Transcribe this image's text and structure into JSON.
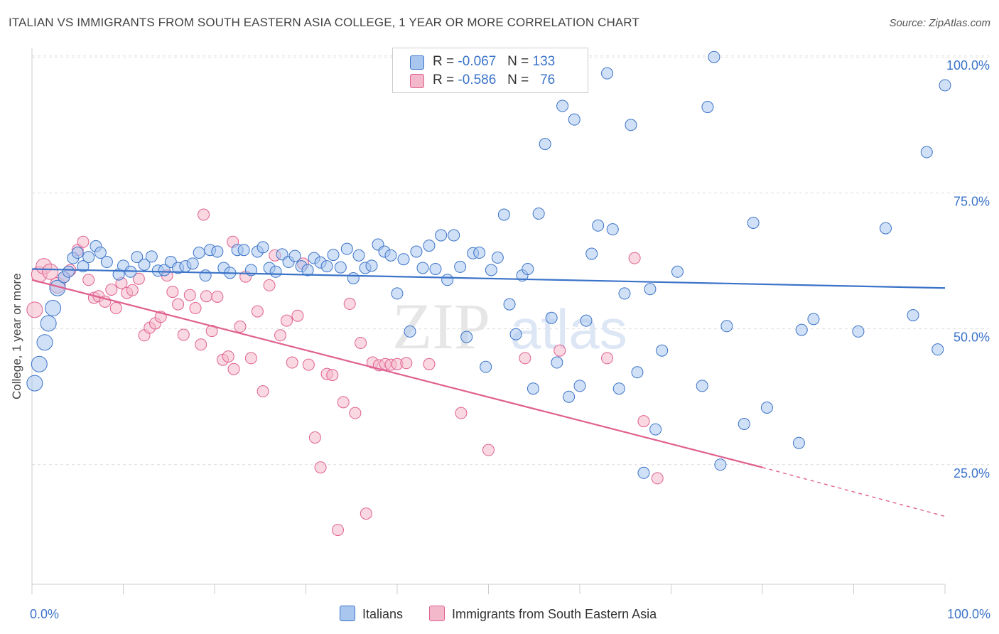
{
  "title": "ITALIAN VS IMMIGRANTS FROM SOUTH EASTERN ASIA COLLEGE, 1 YEAR OR MORE CORRELATION CHART",
  "source": "Source: ZipAtlas.com",
  "watermark": {
    "zip": "ZIP",
    "atlas": "atlas"
  },
  "colors": {
    "blue": "#3b73c8",
    "blue_fill": "#a9c6ee",
    "pink": "#e0608f",
    "pink_fill": "#f4b8cb",
    "axis_text": "#3b73c8"
  },
  "legend": {
    "rows": [
      {
        "r_label": "R =",
        "r_value": "-0.067",
        "n_label": "N =",
        "n_value": "133"
      },
      {
        "r_label": "R =",
        "r_value": "-0.586",
        "n_label": "N =",
        "n_value": "76"
      }
    ]
  },
  "bottom_legend": {
    "items": [
      "Italians",
      "Immigrants from South Eastern Asia"
    ]
  },
  "chart_data": {
    "type": "scatter",
    "title": "ITALIAN VS IMMIGRANTS FROM SOUTH EASTERN ASIA COLLEGE, 1 YEAR OR MORE CORRELATION CHART",
    "xlabel": "",
    "ylabel": "College, 1 year or more",
    "x_tick_labels": [
      "0.0%",
      "100.0%"
    ],
    "y_tick_labels": [
      "25.0%",
      "50.0%",
      "75.0%",
      "100.0%"
    ],
    "xlim": [
      0,
      100
    ],
    "ylim": [
      0,
      105
    ],
    "grid": "horizontal dashed",
    "series": [
      {
        "name": "Italians",
        "color": "#3b73c8",
        "trend": {
          "x": [
            0,
            100
          ],
          "y": [
            61.0,
            57.5
          ]
        },
        "points": [
          [
            0.3,
            40.0
          ],
          [
            0.8,
            43.5
          ],
          [
            1.4,
            47.5
          ],
          [
            1.8,
            51.0
          ],
          [
            2.3,
            53.8
          ],
          [
            2.8,
            57.5
          ],
          [
            3.5,
            59.5
          ],
          [
            4.0,
            60.5
          ],
          [
            4.5,
            63.0
          ],
          [
            5.0,
            64.0
          ],
          [
            5.6,
            61.5
          ],
          [
            6.2,
            63.2
          ],
          [
            7.0,
            65.2
          ],
          [
            7.5,
            64.0
          ],
          [
            8.2,
            62.3
          ],
          [
            9.5,
            60.0
          ],
          [
            10.0,
            61.6
          ],
          [
            10.8,
            60.5
          ],
          [
            11.5,
            63.2
          ],
          [
            12.3,
            61.8
          ],
          [
            13.1,
            63.3
          ],
          [
            13.8,
            60.7
          ],
          [
            14.5,
            60.8
          ],
          [
            15.2,
            62.3
          ],
          [
            16.0,
            61.2
          ],
          [
            16.8,
            61.5
          ],
          [
            17.6,
            62.0
          ],
          [
            18.3,
            64.0
          ],
          [
            19.0,
            59.8
          ],
          [
            19.5,
            64.5
          ],
          [
            20.3,
            64.2
          ],
          [
            21.0,
            61.2
          ],
          [
            21.7,
            60.3
          ],
          [
            22.5,
            64.5
          ],
          [
            23.2,
            64.5
          ],
          [
            24.0,
            60.8
          ],
          [
            24.7,
            64.2
          ],
          [
            25.3,
            65.0
          ],
          [
            26.0,
            61.2
          ],
          [
            26.7,
            60.5
          ],
          [
            27.4,
            63.7
          ],
          [
            28.1,
            62.3
          ],
          [
            28.8,
            63.4
          ],
          [
            29.5,
            61.5
          ],
          [
            30.2,
            60.8
          ],
          [
            30.9,
            63.0
          ],
          [
            31.6,
            62.2
          ],
          [
            32.3,
            61.5
          ],
          [
            33.0,
            63.6
          ],
          [
            33.8,
            61.3
          ],
          [
            34.5,
            64.7
          ],
          [
            35.2,
            59.3
          ],
          [
            35.8,
            63.5
          ],
          [
            36.5,
            61.2
          ],
          [
            37.2,
            61.6
          ],
          [
            37.9,
            65.5
          ],
          [
            38.6,
            64.2
          ],
          [
            39.3,
            63.5
          ],
          [
            40.0,
            56.5
          ],
          [
            40.7,
            62.8
          ],
          [
            41.4,
            49.5
          ],
          [
            42.1,
            64.2
          ],
          [
            42.8,
            61.2
          ],
          [
            43.5,
            65.3
          ],
          [
            44.2,
            61.0
          ],
          [
            44.8,
            67.2
          ],
          [
            45.5,
            59.0
          ],
          [
            46.2,
            67.2
          ],
          [
            46.9,
            61.4
          ],
          [
            47.6,
            48.5
          ],
          [
            48.3,
            63.9
          ],
          [
            49.0,
            64.0
          ],
          [
            49.7,
            43.0
          ],
          [
            50.3,
            60.8
          ],
          [
            51.0,
            63.1
          ],
          [
            51.7,
            71.0
          ],
          [
            52.3,
            54.5
          ],
          [
            53.0,
            49.0
          ],
          [
            53.7,
            59.8
          ],
          [
            54.3,
            61.0
          ],
          [
            54.9,
            39.0
          ],
          [
            55.5,
            71.2
          ],
          [
            56.2,
            84.0
          ],
          [
            56.9,
            52.0
          ],
          [
            57.5,
            43.8
          ],
          [
            58.1,
            91.0
          ],
          [
            58.8,
            37.5
          ],
          [
            59.4,
            88.5
          ],
          [
            60.0,
            39.5
          ],
          [
            60.7,
            51.5
          ],
          [
            61.3,
            63.8
          ],
          [
            62.0,
            69.0
          ],
          [
            63.0,
            97.0
          ],
          [
            63.6,
            68.3
          ],
          [
            64.3,
            39.0
          ],
          [
            64.9,
            56.5
          ],
          [
            65.6,
            87.5
          ],
          [
            66.3,
            42.0
          ],
          [
            67.0,
            23.5
          ],
          [
            67.7,
            57.3
          ],
          [
            68.3,
            31.5
          ],
          [
            69.0,
            46.0
          ],
          [
            70.7,
            60.5
          ],
          [
            73.4,
            39.5
          ],
          [
            74.0,
            90.8
          ],
          [
            74.7,
            100.0
          ],
          [
            75.4,
            25.0
          ],
          [
            76.1,
            50.5
          ],
          [
            78.0,
            32.5
          ],
          [
            79.0,
            69.5
          ],
          [
            80.5,
            35.5
          ],
          [
            84.0,
            29.0
          ],
          [
            84.3,
            49.8
          ],
          [
            85.6,
            51.8
          ],
          [
            90.5,
            49.5
          ],
          [
            93.5,
            68.5
          ],
          [
            96.5,
            52.5
          ],
          [
            98.0,
            82.5
          ],
          [
            99.2,
            46.2
          ],
          [
            100.0,
            94.8
          ]
        ]
      },
      {
        "name": "Immigrants from South Eastern Asia",
        "color": "#e0608f",
        "trend": {
          "x": [
            0,
            80
          ],
          "y": [
            59.0,
            24.5
          ],
          "dashed_to": [
            100,
            15.5
          ]
        },
        "points": [
          [
            0.3,
            53.5
          ],
          [
            0.8,
            60.0
          ],
          [
            1.3,
            61.5
          ],
          [
            2.0,
            60.5
          ],
          [
            2.8,
            58.0
          ],
          [
            3.5,
            59.5
          ],
          [
            4.2,
            60.8
          ],
          [
            5.0,
            64.5
          ],
          [
            5.6,
            66.0
          ],
          [
            6.2,
            59.0
          ],
          [
            6.8,
            55.7
          ],
          [
            7.3,
            56.0
          ],
          [
            8.0,
            55.0
          ],
          [
            8.7,
            57.2
          ],
          [
            9.2,
            53.8
          ],
          [
            9.8,
            58.4
          ],
          [
            10.4,
            56.6
          ],
          [
            11.0,
            57.1
          ],
          [
            11.7,
            59.2
          ],
          [
            12.3,
            48.8
          ],
          [
            12.9,
            50.2
          ],
          [
            13.5,
            51.0
          ],
          [
            14.1,
            52.2
          ],
          [
            14.8,
            59.8
          ],
          [
            15.4,
            56.8
          ],
          [
            16.0,
            54.5
          ],
          [
            16.6,
            48.9
          ],
          [
            17.3,
            56.2
          ],
          [
            17.9,
            53.8
          ],
          [
            18.5,
            47.1
          ],
          [
            19.1,
            56.0
          ],
          [
            19.7,
            49.6
          ],
          [
            20.3,
            55.9
          ],
          [
            20.9,
            44.3
          ],
          [
            21.5,
            44.9
          ],
          [
            22.1,
            42.6
          ],
          [
            22.8,
            50.4
          ],
          [
            23.4,
            59.6
          ],
          [
            24.0,
            44.6
          ],
          [
            24.7,
            53.2
          ],
          [
            25.3,
            38.5
          ],
          [
            26.0,
            58.0
          ],
          [
            26.6,
            63.5
          ],
          [
            27.2,
            48.8
          ],
          [
            27.9,
            51.5
          ],
          [
            28.5,
            43.8
          ],
          [
            29.1,
            52.4
          ],
          [
            29.7,
            62.0
          ],
          [
            30.3,
            43.4
          ],
          [
            31.0,
            30.0
          ],
          [
            31.6,
            24.5
          ],
          [
            32.3,
            41.7
          ],
          [
            32.9,
            41.5
          ],
          [
            33.5,
            13.0
          ],
          [
            34.1,
            36.5
          ],
          [
            34.8,
            54.6
          ],
          [
            35.4,
            34.5
          ],
          [
            36.0,
            47.4
          ],
          [
            36.6,
            16.0
          ],
          [
            37.3,
            43.8
          ],
          [
            38.0,
            43.3
          ],
          [
            38.7,
            43.5
          ],
          [
            39.3,
            43.4
          ],
          [
            40.0,
            43.5
          ],
          [
            41.0,
            43.7
          ],
          [
            43.5,
            43.5
          ],
          [
            47.0,
            34.5
          ],
          [
            50.0,
            27.7
          ],
          [
            54.0,
            44.6
          ],
          [
            57.8,
            46.0
          ],
          [
            63.0,
            44.6
          ],
          [
            66.0,
            63.0
          ],
          [
            67.0,
            33.0
          ],
          [
            68.5,
            22.5
          ],
          [
            18.8,
            71.0
          ],
          [
            22.0,
            66.0
          ]
        ]
      }
    ]
  }
}
